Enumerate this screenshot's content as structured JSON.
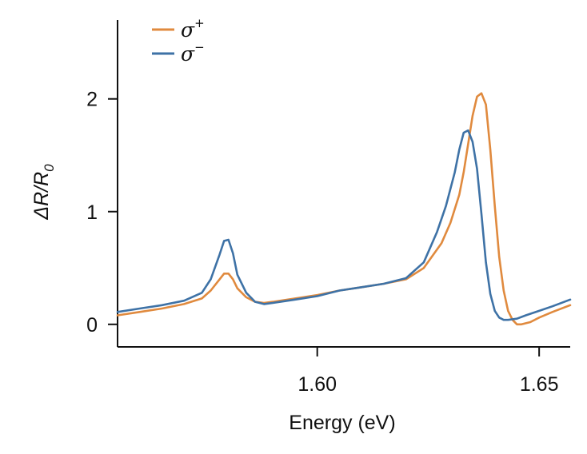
{
  "chart_data": {
    "type": "line",
    "title": "",
    "xlabel": "Energy (eV)",
    "ylabel_main": "ΔR/R",
    "ylabel_sub": "0",
    "xlim": [
      1.555,
      1.657
    ],
    "ylim": [
      -0.2,
      2.7
    ],
    "xticks": [
      1.6,
      1.65
    ],
    "xtick_labels": [
      "1.60",
      "1.65"
    ],
    "yticks": [
      0,
      1,
      2
    ],
    "ytick_labels": [
      "0",
      "1",
      "2"
    ],
    "grid": false,
    "legend_position": "top-left",
    "series": [
      {
        "name": "σ+",
        "label_base": "σ",
        "label_sup": "+",
        "color": "#E08A3E",
        "x": [
          1.555,
          1.56,
          1.565,
          1.57,
          1.574,
          1.576,
          1.578,
          1.579,
          1.58,
          1.581,
          1.582,
          1.584,
          1.586,
          1.588,
          1.59,
          1.595,
          1.6,
          1.605,
          1.61,
          1.615,
          1.62,
          1.624,
          1.628,
          1.63,
          1.632,
          1.633,
          1.634,
          1.635,
          1.636,
          1.637,
          1.638,
          1.639,
          1.64,
          1.641,
          1.642,
          1.643,
          1.644,
          1.645,
          1.646,
          1.648,
          1.65,
          1.653,
          1.657
        ],
        "y": [
          0.08,
          0.11,
          0.14,
          0.18,
          0.23,
          0.3,
          0.4,
          0.45,
          0.45,
          0.4,
          0.32,
          0.24,
          0.2,
          0.19,
          0.2,
          0.23,
          0.26,
          0.3,
          0.33,
          0.36,
          0.4,
          0.5,
          0.72,
          0.9,
          1.15,
          1.35,
          1.6,
          1.85,
          2.02,
          2.05,
          1.95,
          1.55,
          1.05,
          0.6,
          0.3,
          0.12,
          0.04,
          0.0,
          0.0,
          0.02,
          0.06,
          0.11,
          0.17
        ]
      },
      {
        "name": "σ−",
        "label_base": "σ",
        "label_sup": "−",
        "color": "#3E72A6",
        "x": [
          1.555,
          1.56,
          1.565,
          1.57,
          1.574,
          1.576,
          1.578,
          1.579,
          1.58,
          1.581,
          1.582,
          1.584,
          1.586,
          1.588,
          1.59,
          1.595,
          1.6,
          1.605,
          1.61,
          1.615,
          1.62,
          1.624,
          1.627,
          1.629,
          1.631,
          1.632,
          1.633,
          1.634,
          1.635,
          1.636,
          1.637,
          1.638,
          1.639,
          1.64,
          1.641,
          1.642,
          1.643,
          1.645,
          1.647,
          1.65,
          1.653,
          1.657
        ],
        "y": [
          0.11,
          0.14,
          0.17,
          0.21,
          0.28,
          0.4,
          0.62,
          0.74,
          0.75,
          0.63,
          0.44,
          0.28,
          0.2,
          0.18,
          0.19,
          0.22,
          0.25,
          0.3,
          0.33,
          0.36,
          0.41,
          0.55,
          0.82,
          1.05,
          1.35,
          1.55,
          1.7,
          1.72,
          1.62,
          1.38,
          0.98,
          0.55,
          0.27,
          0.12,
          0.06,
          0.04,
          0.04,
          0.05,
          0.08,
          0.12,
          0.16,
          0.22
        ]
      }
    ]
  }
}
